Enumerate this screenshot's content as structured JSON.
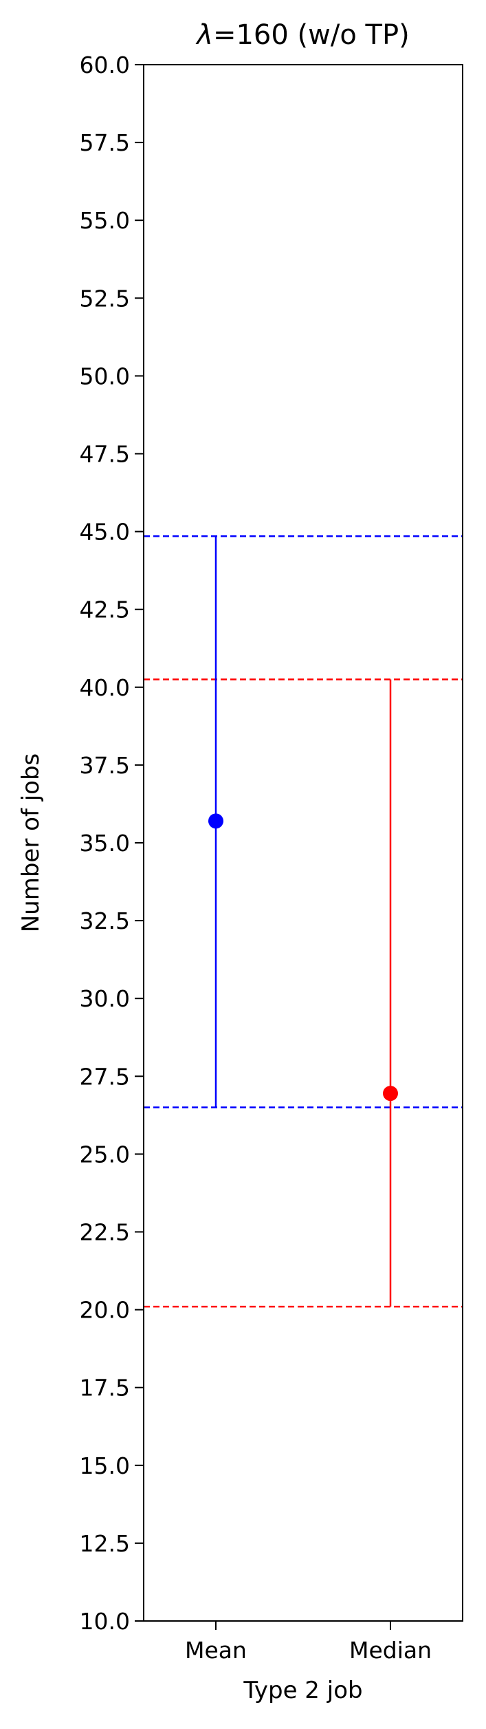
{
  "chart_data": {
    "type": "scatter",
    "title_prefix": "λ",
    "title_rest": "=160 (w/o TP)",
    "xlabel": "Type 2 job",
    "ylabel": "Number of jobs",
    "categories": [
      "Mean",
      "Median"
    ],
    "ylim": [
      10.0,
      60.0
    ],
    "yticks": [
      "10.0",
      "12.5",
      "15.0",
      "17.5",
      "20.0",
      "22.5",
      "25.0",
      "27.5",
      "30.0",
      "32.5",
      "35.0",
      "37.5",
      "40.0",
      "42.5",
      "45.0",
      "47.5",
      "50.0",
      "52.5",
      "55.0",
      "57.5",
      "60.0"
    ],
    "grid": false,
    "series": [
      {
        "category": "Mean",
        "value": 35.7,
        "lower": 26.5,
        "upper": 44.85,
        "color": "#0000ff"
      },
      {
        "category": "Median",
        "value": 26.95,
        "lower": 20.1,
        "upper": 40.25,
        "color": "#ff0000"
      }
    ]
  }
}
